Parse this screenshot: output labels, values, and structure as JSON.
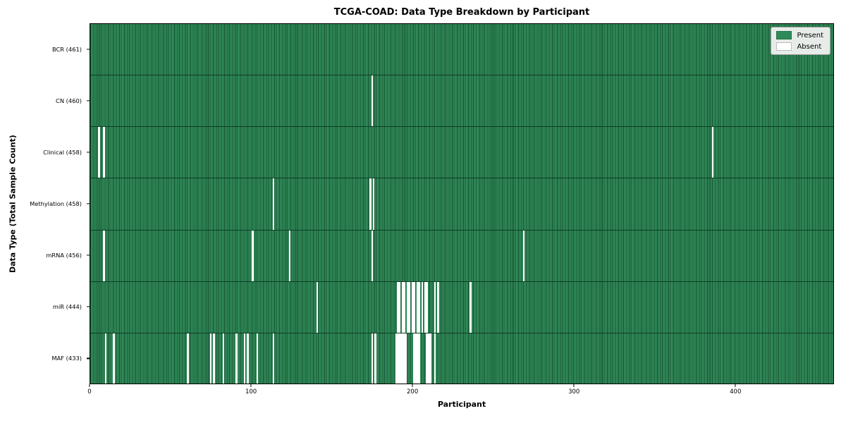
{
  "title": "TCGA-COAD: Data Type Breakdown by Participant",
  "axes": {
    "x_label": "Participant",
    "y_label": "Data Type (Total Sample Count)"
  },
  "legend": {
    "present_label": "Present",
    "absent_label": "Absent"
  },
  "colors": {
    "present": "#2e8b57",
    "present_edge": "#144e2f",
    "absent": "#ffffff",
    "axes_border": "#000000",
    "legend_background": "#e7ece8"
  },
  "chart_data": {
    "type": "heatmap",
    "title": "TCGA-COAD: Data Type Breakdown by Participant",
    "xlabel": "Participant",
    "ylabel": "Data Type (Total Sample Count)",
    "legend_entries": [
      "Present",
      "Absent"
    ],
    "legend_position": "upper right",
    "grid": false,
    "x_axis": {
      "ticks": [
        0,
        100,
        200,
        300,
        400
      ],
      "range": [
        0,
        461
      ]
    },
    "total_participants": 461,
    "rows": [
      {
        "name": "BCR",
        "label": "BCR (461)",
        "present_count": 461,
        "absent_count": 0,
        "absent_participants": []
      },
      {
        "name": "CN",
        "label": "CN (460)",
        "present_count": 460,
        "absent_count": 1,
        "absent_participants": [
          174
        ]
      },
      {
        "name": "Clinical",
        "label": "Clinical (458)",
        "present_count": 458,
        "absent_count": 3,
        "absent_participants": [
          5,
          8,
          385
        ]
      },
      {
        "name": "Methylation",
        "label": "Methylation (458)",
        "present_count": 458,
        "absent_count": 3,
        "absent_participants": [
          113,
          173,
          175
        ]
      },
      {
        "name": "mRNA",
        "label": "mRNA (456)",
        "present_count": 456,
        "absent_count": 5,
        "absent_participants": [
          8,
          100,
          123,
          174,
          268
        ]
      },
      {
        "name": "miR",
        "label": "miR (444)",
        "present_count": 444,
        "absent_count": 17,
        "absent_participants": [
          140,
          190,
          191,
          193,
          194,
          196,
          197,
          199,
          200,
          202,
          203,
          205,
          207,
          208,
          213,
          215,
          235
        ]
      },
      {
        "name": "MAF",
        "label": "MAF (433)",
        "present_count": 433,
        "absent_count": 28,
        "absent_participants": [
          9,
          14,
          60,
          74,
          76,
          82,
          90,
          95,
          97,
          103,
          113,
          174,
          176,
          189,
          190,
          191,
          192,
          193,
          194,
          195,
          200,
          201,
          202,
          203,
          208,
          209,
          210,
          213
        ]
      }
    ]
  }
}
